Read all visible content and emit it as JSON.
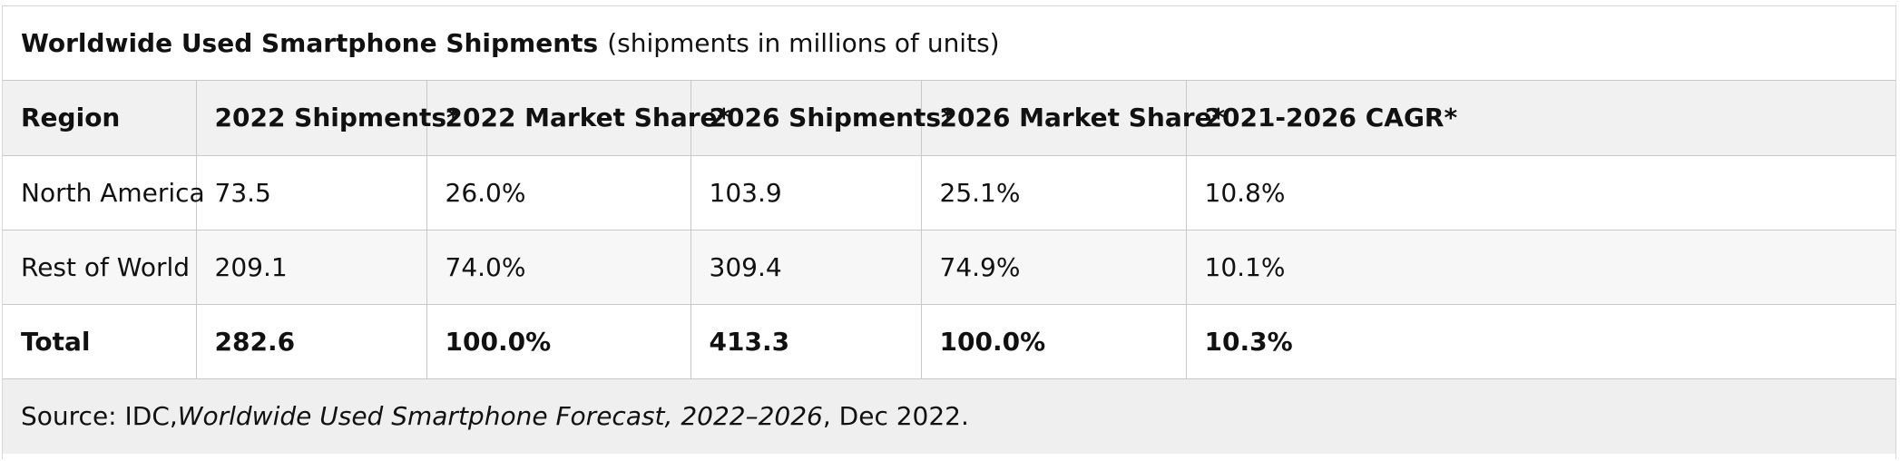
{
  "chart_data": {
    "type": "table",
    "title": "Worldwide Used Smartphone Shipments",
    "subtitle": "(shipments in millions of units)",
    "columns": [
      "Region",
      "2022 Shipments*",
      "2022 Market Share*",
      "2026 Shipments*",
      "2026 Market Share*",
      "2021-2026 CAGR*"
    ],
    "rows": [
      {
        "region": "North America",
        "shipments_2022": "73.5",
        "share_2022": "26.0%",
        "shipments_2026": "103.9",
        "share_2026": "25.1%",
        "cagr": "10.8%"
      },
      {
        "region": "Rest of World",
        "shipments_2022": "209.1",
        "share_2022": "74.0%",
        "shipments_2026": "309.4",
        "share_2026": "74.9%",
        "cagr": "10.1%"
      },
      {
        "region": "Total",
        "shipments_2022": "282.6",
        "share_2022": "100.0%",
        "shipments_2026": "413.3",
        "share_2026": "100.0%",
        "cagr": "10.3%"
      }
    ]
  },
  "source": {
    "prefix": "Source: IDC, ",
    "report": "Worldwide Used Smartphone Forecast, 2022–2026",
    "suffix": ", Dec 2022."
  }
}
